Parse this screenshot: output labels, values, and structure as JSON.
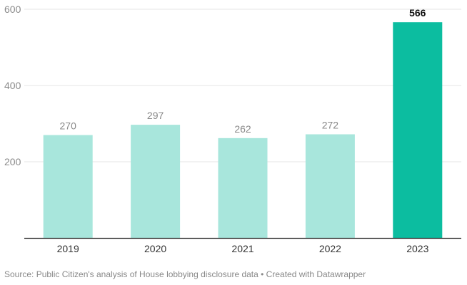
{
  "chart_data": {
    "type": "bar",
    "categories": [
      "2019",
      "2020",
      "2021",
      "2022",
      "2023"
    ],
    "values": [
      270,
      297,
      262,
      272,
      566
    ],
    "data_labels": [
      "270",
      "297",
      "262",
      "272",
      "566"
    ],
    "highlight_index": 4,
    "ylim": [
      0,
      600
    ],
    "yticks": [
      200,
      400,
      600
    ],
    "ytick_labels": [
      "200",
      "400",
      "600"
    ],
    "grid": true,
    "legend": "none",
    "colors": {
      "bar": "#a8e6dc",
      "highlight": "#0cbda0",
      "grid": "#e4e4e4",
      "baseline": "#333333"
    }
  },
  "footer": {
    "source": "Source: Public Citizen's analysis of House lobbying disclosure data • Created with Datawrapper"
  }
}
